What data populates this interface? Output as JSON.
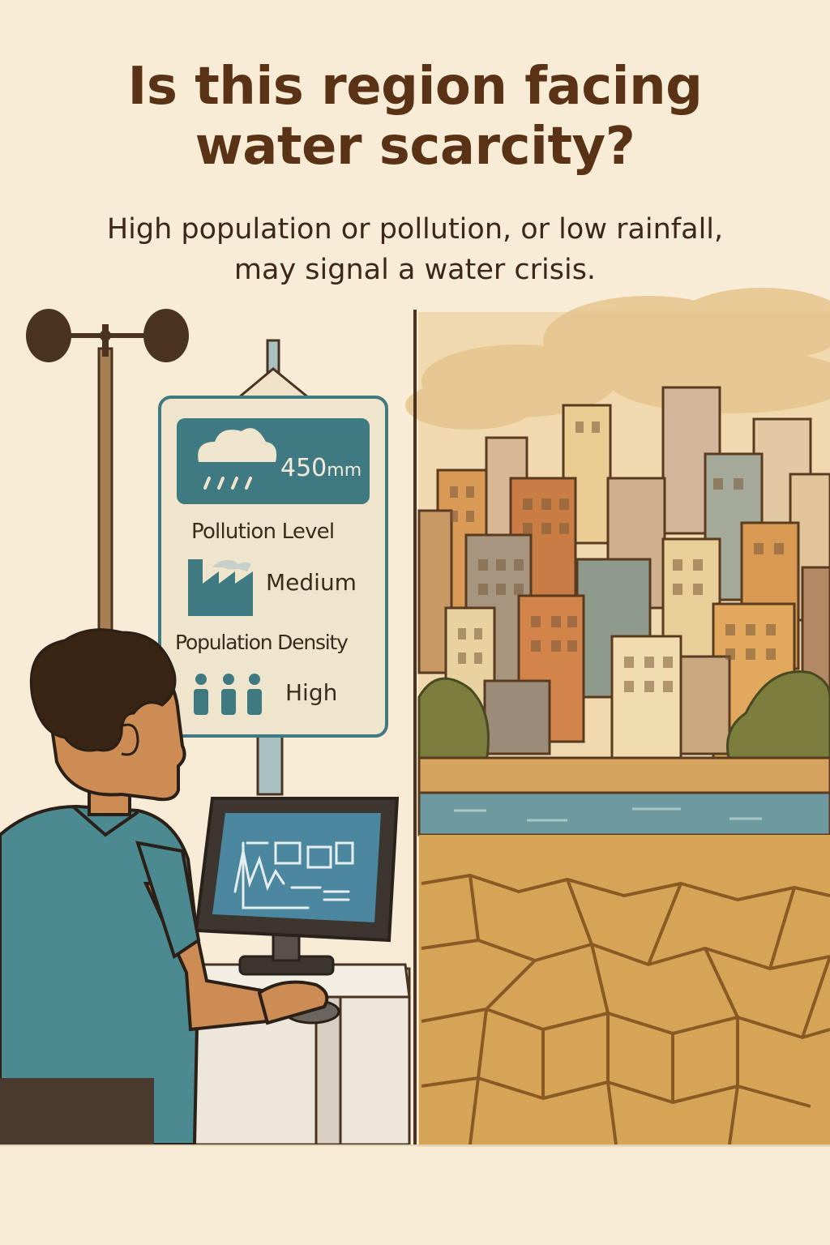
{
  "header": {
    "title_line1": "Is this region facing",
    "title_line2": "water scarcity?",
    "subtitle_line1": "High population or pollution, or low rainfall,",
    "subtitle_line2": "may signal a water crisis."
  },
  "sign": {
    "rainfall_value": "450",
    "rainfall_unit": "mm",
    "pollution_label": "Pollution Level",
    "pollution_value": "Medium",
    "population_label": "Population Density",
    "population_value": "High",
    "accent_color": "#3f7a83"
  },
  "icons": [
    "anemometer-icon",
    "rain-cloud-icon",
    "factory-icon",
    "people-icon",
    "monitor-chart-icon"
  ],
  "scene": {
    "left": "weather-station-monitoring",
    "right": "city-river-cracked-earth"
  }
}
